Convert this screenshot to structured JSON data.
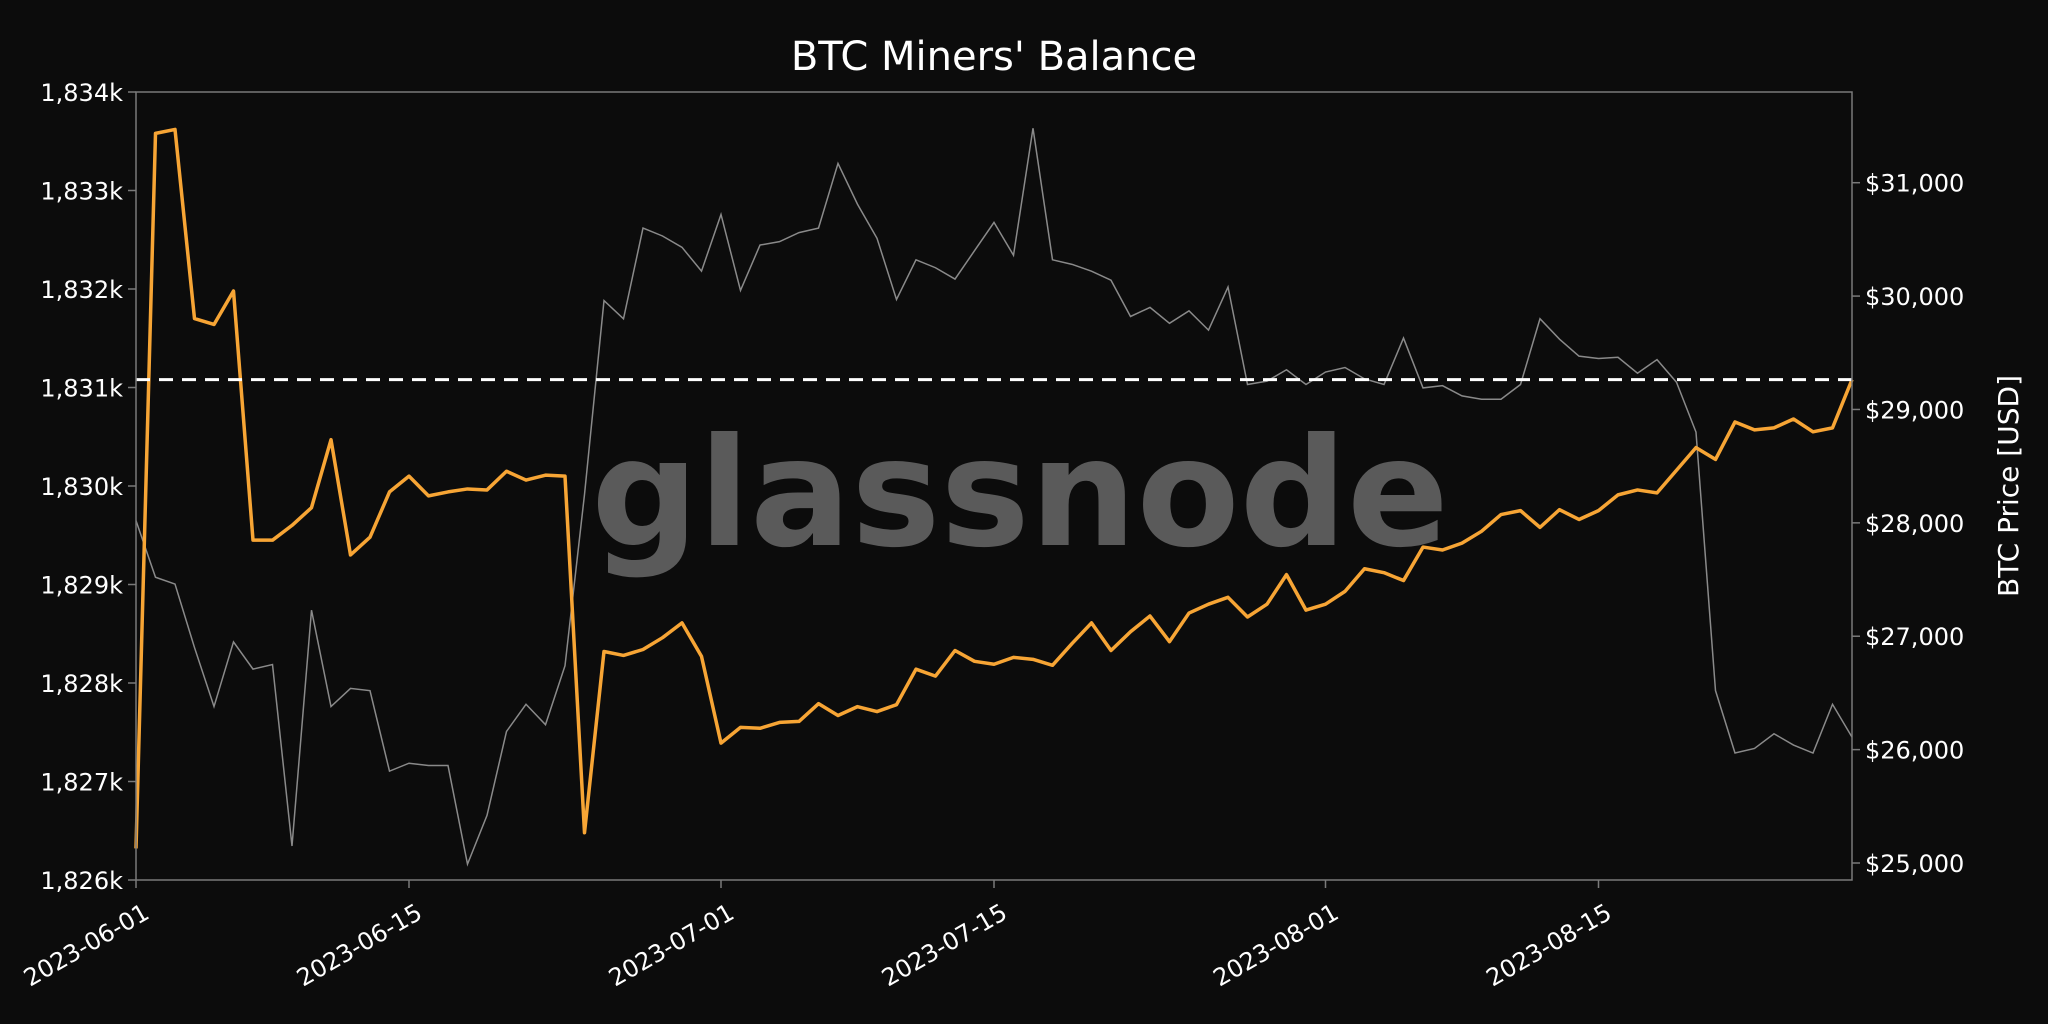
{
  "colors": {
    "background": "#0c0c0c",
    "balance_line": "#f7a535",
    "price_line": "#8a8a8a",
    "reference_line": "#ffffff",
    "text": "#ffffff",
    "frame": "#7a7a7a",
    "watermark": "#5a5a5a"
  },
  "watermark": "glassnode",
  "chart_data": {
    "type": "line",
    "title": "BTC Miners' Balance",
    "xlabel": "",
    "ylabel_left": "",
    "ylabel_right": "BTC Price [USD]",
    "x_start": "2023-06-01",
    "x_ticks": [
      "2023-06-01",
      "2023-06-15",
      "2023-07-01",
      "2023-07-15",
      "2023-08-01",
      "2023-08-15"
    ],
    "y_left": {
      "min": 1826000,
      "max": 1834000,
      "ticks": [
        1826000,
        1827000,
        1828000,
        1829000,
        1830000,
        1831000,
        1832000,
        1833000,
        1834000
      ],
      "tick_labels": [
        "1,826k",
        "1,827k",
        "1,828k",
        "1,829k",
        "1,830k",
        "1,831k",
        "1,832k",
        "1,833k",
        "1,834k"
      ]
    },
    "y_right": {
      "min": 24850,
      "max": 31800,
      "ticks": [
        25000,
        26000,
        27000,
        28000,
        29000,
        30000,
        31000
      ],
      "tick_labels": [
        "$25,000",
        "$26,000",
        "$27,000",
        "$28,000",
        "$29,000",
        "$30,000",
        "$31,000"
      ]
    },
    "reference_line": {
      "axis": "left",
      "value": 1831080,
      "style": "dashed"
    },
    "grid": false,
    "series": [
      {
        "axis": "left",
        "values": [
          1826320,
          1833580,
          1833620,
          1831700,
          1831640,
          1831980,
          1829450,
          1829450,
          1829600,
          1829780,
          1830470,
          1829300,
          1829480,
          1829940,
          1830100,
          1829900,
          1829940,
          1829970,
          1829960,
          1830150,
          1830060,
          1830110,
          1830100,
          1826480,
          1828320,
          1828280,
          1828340,
          1828460,
          1828610,
          1828270,
          1827390,
          1827550,
          1827540,
          1827600,
          1827610,
          1827790,
          1827670,
          1827760,
          1827710,
          1827780,
          1828140,
          1828070,
          1828330,
          1828220,
          1828190,
          1828260,
          1828240,
          1828180,
          1828400,
          1828610,
          1828330,
          1828520,
          1828680,
          1828420,
          1828710,
          1828800,
          1828870,
          1828670,
          1828800,
          1829100,
          1828740,
          1828800,
          1828930,
          1829160,
          1829120,
          1829040,
          1829380,
          1829350,
          1829420,
          1829540,
          1829710,
          1829750,
          1829580,
          1829760,
          1829660,
          1829750,
          1829910,
          1829960,
          1829930,
          1830160,
          1830390,
          1830270,
          1830650,
          1830570,
          1830590,
          1830680,
          1830550,
          1830590,
          1831080
        ]
      },
      {
        "axis": "right",
        "values": [
          28020,
          27520,
          27460,
          26900,
          26380,
          26950,
          26710,
          26750,
          25150,
          27230,
          26380,
          26540,
          26520,
          25810,
          25880,
          25860,
          25860,
          24990,
          25420,
          26160,
          26400,
          26220,
          26740,
          28250,
          29960,
          29800,
          30600,
          30530,
          30430,
          30220,
          30720,
          30050,
          30450,
          30480,
          30560,
          30600,
          31170,
          30810,
          30510,
          29970,
          30320,
          30250,
          30150,
          30400,
          30650,
          30360,
          31480,
          30320,
          30280,
          30220,
          30140,
          29820,
          29900,
          29760,
          29870,
          29700,
          30080,
          29220,
          29250,
          29350,
          29220,
          29330,
          29370,
          29270,
          29220,
          29630,
          29190,
          29210,
          29120,
          29090,
          29090,
          29220,
          29800,
          29620,
          29470,
          29450,
          29460,
          29320,
          29440,
          29240,
          28800,
          26520,
          25970,
          26010,
          26140,
          26040,
          25970,
          26400,
          26110
        ]
      }
    ]
  }
}
